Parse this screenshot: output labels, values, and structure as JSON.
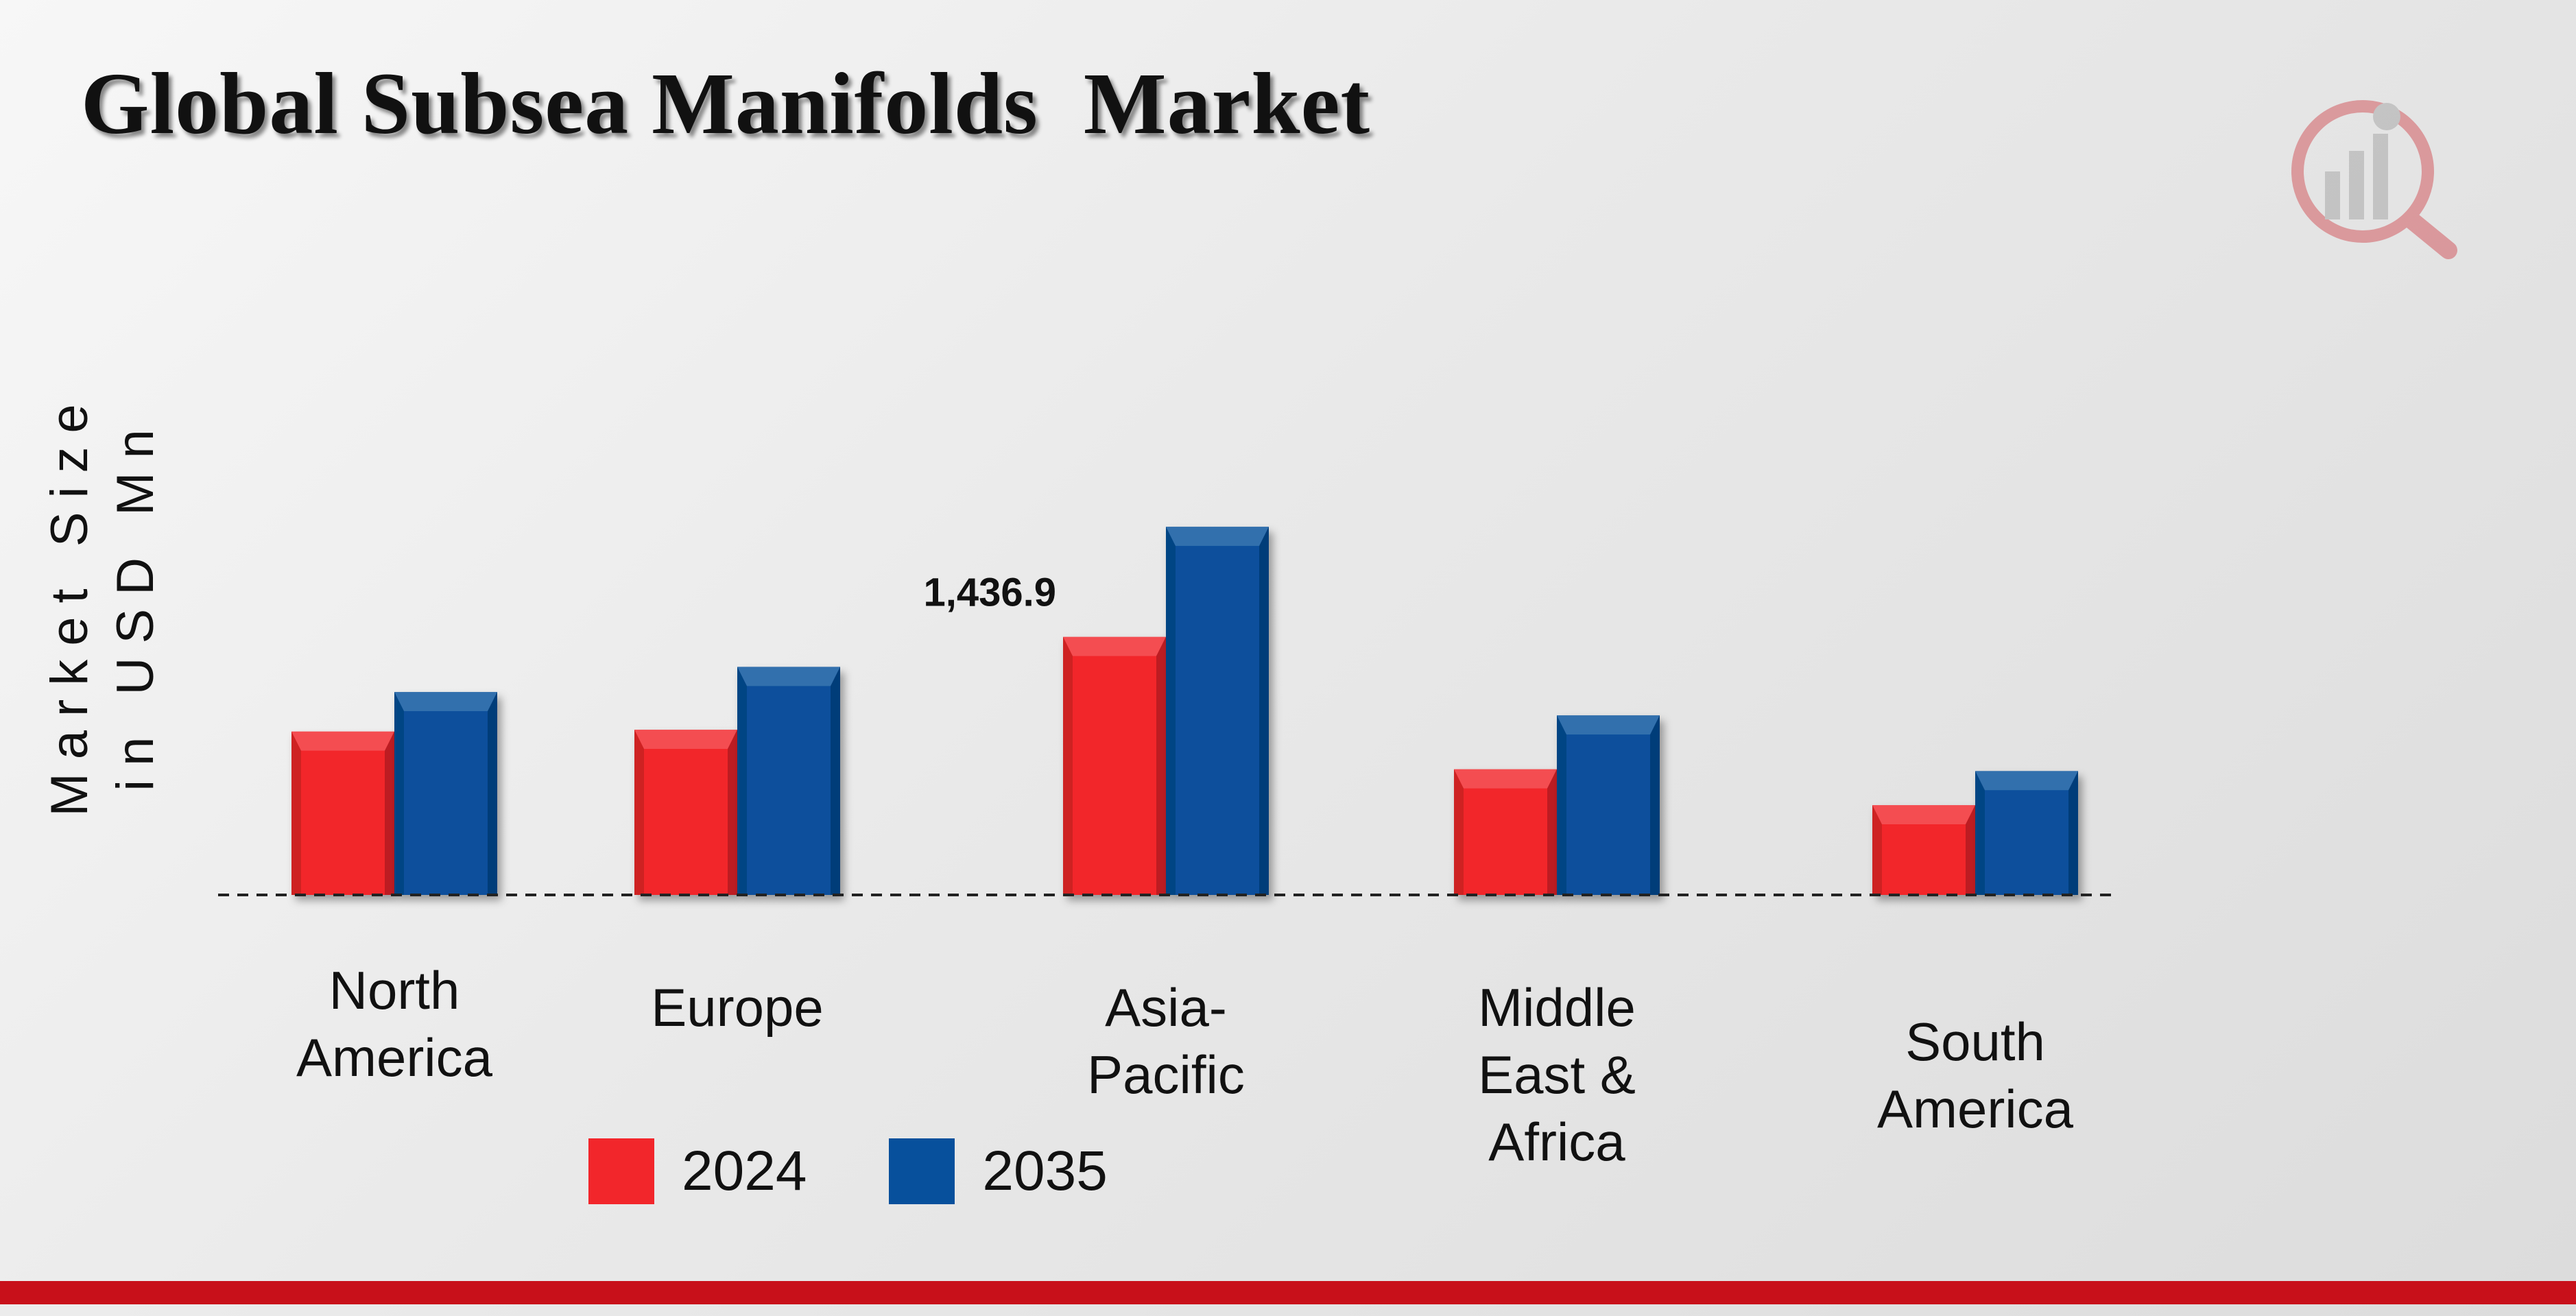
{
  "title": "Global Subsea Manifolds  Market",
  "ylabel_lines": [
    "Market Size",
    "in USD Mn"
  ],
  "colors": {
    "series_2024": "#f2262b",
    "series_2035": "#07509c",
    "bottom_bar": "#c8101a"
  },
  "legend": [
    {
      "label": "2024",
      "color": "#f2262b"
    },
    {
      "label": "2035",
      "color": "#07509c"
    }
  ],
  "chart_data": {
    "type": "bar",
    "categories": [
      "North America",
      "Europe",
      "Asia-Pacific",
      "Middle East & Africa",
      "South America"
    ],
    "category_label_lines": [
      [
        "North",
        "America"
      ],
      [
        "Europe"
      ],
      [
        "Asia-",
        "Pacific"
      ],
      [
        "Middle",
        "East &",
        "Africa"
      ],
      [
        "South",
        "America"
      ]
    ],
    "series": [
      {
        "name": "2024",
        "values": [
          910,
          920,
          1436.9,
          700,
          500
        ]
      },
      {
        "name": "2035",
        "values": [
          1130,
          1270,
          2050,
          1000,
          690
        ]
      }
    ],
    "data_labels": [
      {
        "category": "Asia-Pacific",
        "series": "2024",
        "text": "1,436.9"
      }
    ],
    "ylim": [
      0,
      2100
    ],
    "legend_position": "bottom",
    "baseline": "dashed"
  }
}
